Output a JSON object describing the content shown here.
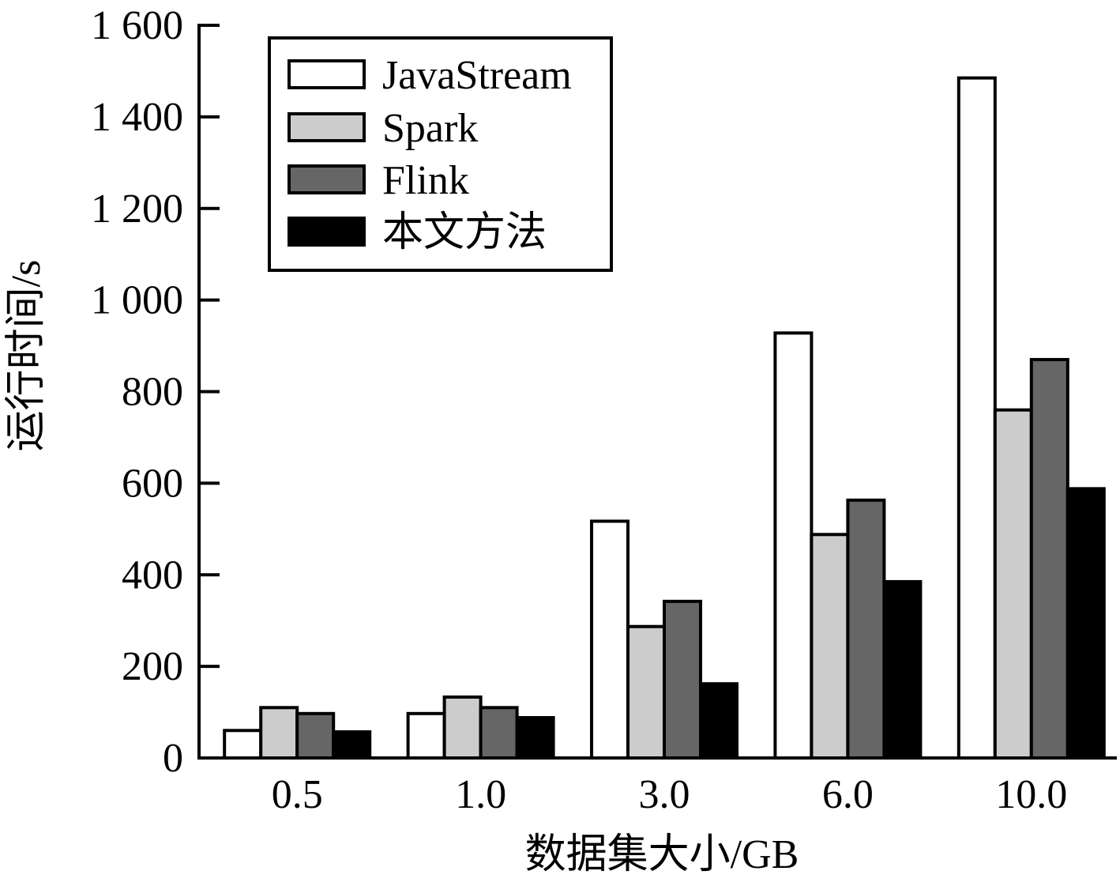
{
  "chart_data": {
    "type": "bar",
    "categories": [
      "0.5",
      "1.0",
      "3.0",
      "6.0",
      "10.0"
    ],
    "series": [
      {
        "name": "JavaStream",
        "values": [
          60,
          97,
          517,
          928,
          1485
        ],
        "color": "#ffffff"
      },
      {
        "name": "Spark",
        "values": [
          110,
          133,
          287,
          488,
          760
        ],
        "color": "#cccccc"
      },
      {
        "name": "Flink",
        "values": [
          97,
          110,
          342,
          563,
          870
        ],
        "color": "#666666"
      },
      {
        "name": "本文方法",
        "values": [
          57,
          88,
          162,
          385,
          588
        ],
        "color": "#000000"
      }
    ],
    "xlabel": "数据集大小/GB",
    "ylabel": "运行时间/s",
    "ylim": [
      0,
      1600
    ],
    "yticks": [
      0,
      200,
      400,
      600,
      800,
      1000,
      1200,
      1400,
      1600
    ],
    "ytick_labels": [
      "0",
      "200",
      "400",
      "600",
      "800",
      "1 000",
      "1 200",
      "1 400",
      "1 600"
    ],
    "grid": false,
    "legend_position": "top-left"
  }
}
